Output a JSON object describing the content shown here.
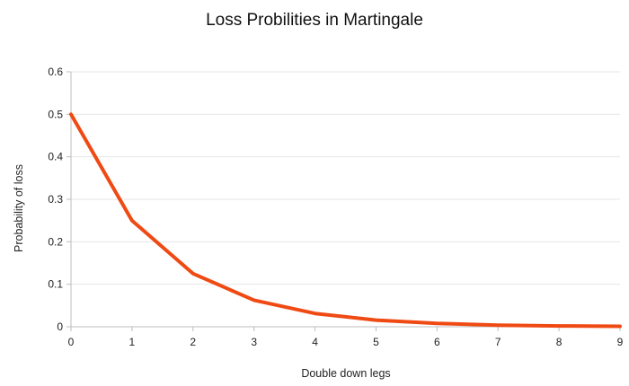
{
  "chart_data": {
    "type": "line",
    "title": "Loss Probilities in Martingale",
    "xlabel": "Double down legs",
    "ylabel": "Probability of loss",
    "xlim": [
      0,
      9
    ],
    "ylim": [
      0,
      0.6
    ],
    "x_ticks": [
      "0",
      "1",
      "2",
      "3",
      "4",
      "5",
      "6",
      "7",
      "8",
      "9"
    ],
    "y_ticks": [
      "0",
      "0.1",
      "0.2",
      "0.3",
      "0.4",
      "0.5",
      "0.6"
    ],
    "grid": true,
    "legend": "none",
    "series": [
      {
        "color": "#f04a14",
        "x": [
          0,
          1,
          2,
          3,
          4,
          5,
          6,
          7,
          8,
          9
        ],
        "y": [
          0.5,
          0.25,
          0.125,
          0.0625,
          0.03125,
          0.015625,
          0.0078125,
          0.00390625,
          0.001953125,
          0.0009765625
        ]
      }
    ]
  }
}
